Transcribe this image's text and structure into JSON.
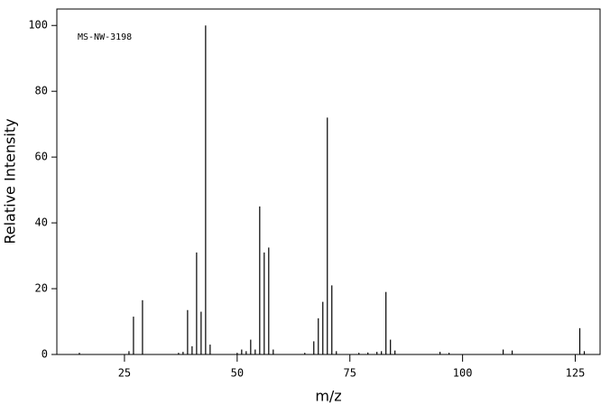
{
  "chart_data": {
    "type": "stick",
    "annotation": "MS-NW-3198",
    "xlabel": "m/z",
    "ylabel": "Relative Intensity",
    "x": [
      15,
      26,
      27,
      29,
      37,
      38,
      39,
      40,
      41,
      42,
      43,
      44,
      50,
      51,
      52,
      53,
      54,
      55,
      56,
      57,
      58,
      65,
      67,
      68,
      69,
      70,
      71,
      72,
      77,
      79,
      81,
      82,
      83,
      84,
      85,
      95,
      97,
      109,
      111,
      126,
      127
    ],
    "values": [
      0.5,
      1,
      11.5,
      16.5,
      0.5,
      0.8,
      13.5,
      2.5,
      31,
      13,
      100,
      3,
      0.5,
      1.5,
      1,
      4.5,
      1.5,
      45,
      31,
      32.5,
      1.5,
      0.5,
      4,
      11,
      16,
      72,
      21,
      1,
      0.5,
      0.6,
      0.8,
      1,
      19,
      4.5,
      1.2,
      0.8,
      0.5,
      1.5,
      1.2,
      8,
      1
    ],
    "color": "#000000",
    "xlim": [
      10,
      130.5
    ],
    "ylim": [
      0,
      105
    ],
    "xticks": [
      25,
      50,
      75,
      100,
      125
    ],
    "yticks": [
      0,
      20,
      40,
      60,
      80,
      100
    ]
  }
}
